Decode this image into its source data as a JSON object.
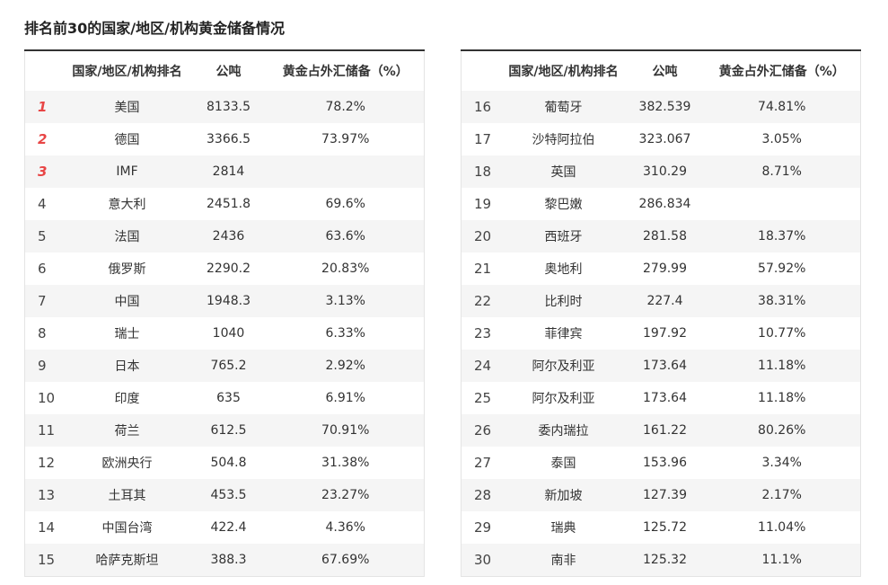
{
  "title": "排名前30的国家/地区/机构黄金储备情况",
  "tables": [
    {
      "header": [
        "国家/地区/机构排名",
        "公吨",
        "黄金占外汇储备（%）"
      ],
      "rows": [
        [
          1,
          "美国",
          8133.5,
          "78.2%"
        ],
        [
          2,
          "德国",
          3366.5,
          "73.97%"
        ],
        [
          3,
          "IMF",
          2814,
          null
        ],
        [
          4,
          "意大利",
          2451.8,
          "69.6%"
        ],
        [
          5,
          "法国",
          2436,
          "63.6%"
        ],
        [
          6,
          "俄罗斯",
          2290.2,
          "20.83%"
        ],
        [
          7,
          "中国",
          1948.3,
          "3.13%"
        ],
        [
          8,
          "瑞士",
          1040,
          "6.33%"
        ],
        [
          9,
          "日本",
          765.2,
          "2.92%"
        ],
        [
          10,
          "印度",
          635,
          "6.91%"
        ],
        [
          11,
          "荷兰",
          612.5,
          "70.91%"
        ],
        [
          12,
          "欧洲央行",
          504.8,
          "31.38%"
        ],
        [
          13,
          "土耳其",
          453.5,
          "23.27%"
        ],
        [
          14,
          "中国台湾",
          422.4,
          "4.36%"
        ],
        [
          15,
          "哈萨克斯坦",
          388.3,
          "67.69%"
        ]
      ]
    },
    {
      "header": [
        "国家/地区/机构排名",
        "公吨",
        "黄金占外汇储备（%）"
      ],
      "rows": [
        [
          16,
          "葡萄牙",
          382.539,
          "74.81%"
        ],
        [
          17,
          "沙特阿拉伯",
          323.067,
          "3.05%"
        ],
        [
          18,
          "英国",
          310.29,
          "8.71%"
        ],
        [
          19,
          "黎巴嫩",
          286.834,
          null
        ],
        [
          20,
          "西班牙",
          281.58,
          "18.37%"
        ],
        [
          21,
          "奥地利",
          279.99,
          "57.92%"
        ],
        [
          22,
          "比利时",
          227.4,
          "38.31%"
        ],
        [
          23,
          "菲律宾",
          197.92,
          "10.77%"
        ],
        [
          24,
          "阿尔及利亚",
          173.64,
          "11.18%"
        ],
        [
          25,
          "阿尔及利亚",
          173.64,
          "11.18%"
        ],
        [
          26,
          "委内瑞拉",
          161.22,
          "80.26%"
        ],
        [
          27,
          "泰国",
          153.96,
          "3.34%"
        ],
        [
          28,
          "新加坡",
          127.39,
          "2.17%"
        ],
        [
          29,
          "瑞典",
          125.72,
          "11.04%"
        ],
        [
          30,
          "南非",
          125.32,
          "11.1%"
        ]
      ]
    }
  ]
}
